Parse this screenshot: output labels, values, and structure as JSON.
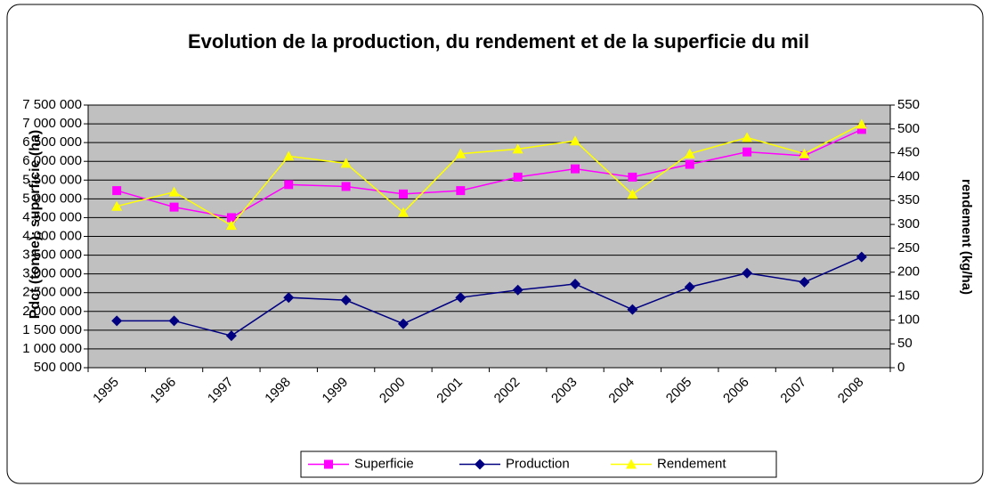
{
  "chart_data": {
    "type": "line",
    "title": "Evolution de la production, du rendement et de la superficie du mil",
    "y_label": "Pdct (tonne); superficie (ha)",
    "y2_label": "rendement (kg/ha)",
    "categories": [
      "1995",
      "1996",
      "1997",
      "1998",
      "1999",
      "2000",
      "2001",
      "2002",
      "2003",
      "2004",
      "2005",
      "2006",
      "2007",
      "2008"
    ],
    "series": [
      {
        "name": "Superficie",
        "color": "#ff00ff",
        "marker": "square",
        "axis": "y",
        "values": [
          5220000,
          4780000,
          4500000,
          5380000,
          5330000,
          5130000,
          5220000,
          5580000,
          5800000,
          5580000,
          5920000,
          6250000,
          6150000,
          6850000
        ]
      },
      {
        "name": "Production",
        "color": "#000080",
        "marker": "diamond",
        "axis": "y",
        "values": [
          1750000,
          1750000,
          1350000,
          2370000,
          2300000,
          1670000,
          2370000,
          2570000,
          2730000,
          2050000,
          2650000,
          3020000,
          2780000,
          3450000
        ]
      },
      {
        "name": "Rendement",
        "color": "#ffff00",
        "marker": "triangle",
        "axis": "y2",
        "values": [
          338,
          368,
          298,
          443,
          428,
          325,
          448,
          458,
          475,
          363,
          448,
          482,
          448,
          510
        ]
      }
    ],
    "ylim": [
      500000,
      7500000
    ],
    "yticks": [
      {
        "value": 500000,
        "label": "500 000"
      },
      {
        "value": 1000000,
        "label": "1 000 000"
      },
      {
        "value": 1500000,
        "label": "1 500 000"
      },
      {
        "value": 2000000,
        "label": "2 000 000"
      },
      {
        "value": 2500000,
        "label": "2 500 000"
      },
      {
        "value": 3000000,
        "label": "3 000 000"
      },
      {
        "value": 3500000,
        "label": "3 500 000"
      },
      {
        "value": 4000000,
        "label": "4 000 000"
      },
      {
        "value": 4500000,
        "label": "4 500 000"
      },
      {
        "value": 5000000,
        "label": "5 000 000"
      },
      {
        "value": 5500000,
        "label": "5 500 000"
      },
      {
        "value": 6000000,
        "label": "6 000 000"
      },
      {
        "value": 6500000,
        "label": "6 500 000"
      },
      {
        "value": 7000000,
        "label": "7 000 000"
      },
      {
        "value": 7500000,
        "label": "7 500 000"
      }
    ],
    "y2lim": [
      0,
      550
    ],
    "y2ticks": [
      0,
      50,
      100,
      150,
      200,
      250,
      300,
      350,
      400,
      450,
      500,
      550
    ],
    "grid": true,
    "plot_background": "#c0c0c0",
    "legend": "bottom"
  }
}
